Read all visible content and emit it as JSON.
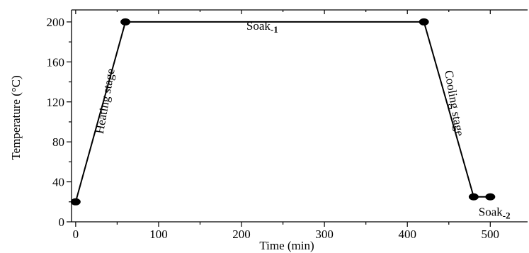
{
  "chart_data": {
    "type": "line",
    "xlabel": "Time (min)",
    "ylabel": "Temperature (°C)",
    "xlim": [
      -5,
      545
    ],
    "ylim": [
      0,
      212
    ],
    "x_ticks": [
      0,
      100,
      200,
      300,
      400,
      500
    ],
    "y_ticks": [
      0,
      40,
      80,
      120,
      160,
      200
    ],
    "x_minor_ticks": [
      50,
      150,
      250,
      350,
      450
    ],
    "y_minor_ticks": [
      20,
      60,
      100,
      140,
      180
    ],
    "grid": false,
    "series": [
      {
        "x": [
          0,
          60,
          420,
          480,
          500
        ],
        "y": [
          20,
          200,
          200,
          25,
          25
        ],
        "color": "#000000"
      }
    ],
    "annotations": [
      {
        "id": "heating",
        "text": "Heating stage",
        "x": 40,
        "y": 120,
        "rotation": -80
      },
      {
        "id": "soak1",
        "main": "Soak",
        "sub": "-1",
        "x": 225,
        "y": 192
      },
      {
        "id": "cooling",
        "text": "Cooling stage",
        "x": 452,
        "y": 118,
        "rotation": 80
      },
      {
        "id": "soak2",
        "main": "Soak",
        "sub": "-2",
        "x": 505,
        "y": 6
      }
    ]
  }
}
